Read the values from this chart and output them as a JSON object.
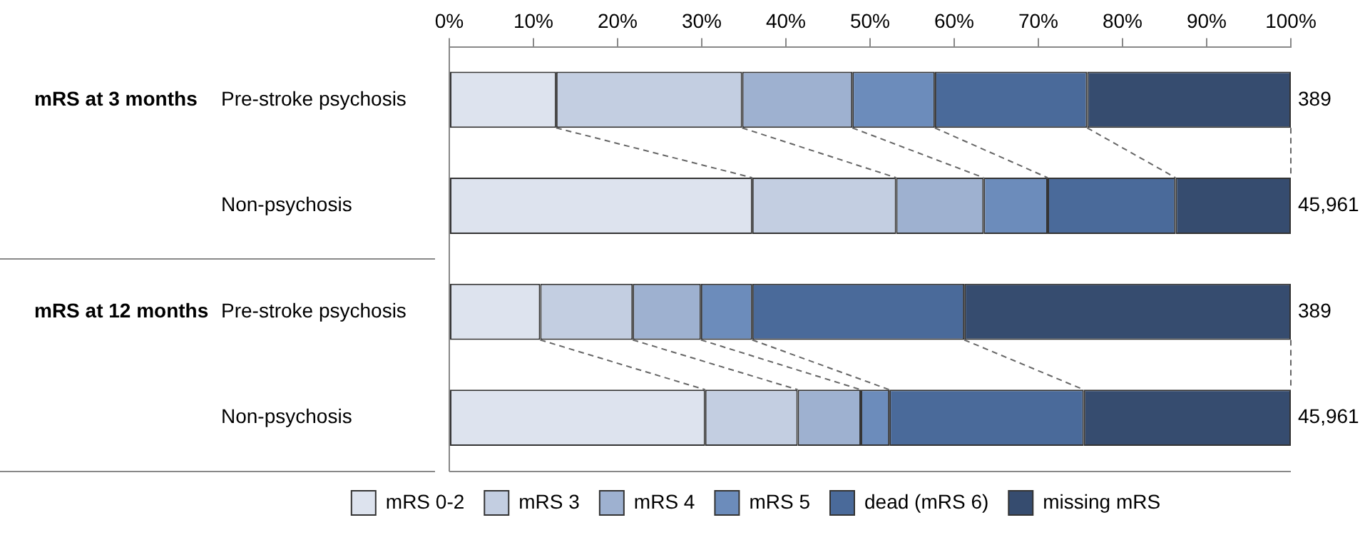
{
  "chart_data": {
    "type": "bar",
    "orientation": "horizontal",
    "stacked": true,
    "categories": [
      "Pre-stroke psychosis",
      "Non-psychosis",
      "Pre-stroke psychosis",
      "Non-psychosis"
    ],
    "series": [
      {
        "name": "mRS 0-2",
        "color": "#dde3ee",
        "values": [
          12.7,
          36.0,
          10.8,
          30.4
        ]
      },
      {
        "name": "mRS 3",
        "color": "#c3cee1",
        "values": [
          22.1,
          17.1,
          11.0,
          11.0
        ]
      },
      {
        "name": "mRS 4",
        "color": "#9eb1d0",
        "values": [
          13.1,
          10.4,
          8.1,
          7.5
        ]
      },
      {
        "name": "mRS 5",
        "color": "#6c8cbb",
        "values": [
          9.8,
          7.6,
          6.1,
          3.4
        ]
      },
      {
        "name": "dead (mRS 6)",
        "color": "#4a6a9a",
        "values": [
          18.1,
          15.2,
          25.2,
          23.1
        ]
      },
      {
        "name": "missing mRS",
        "color": "#364c6f",
        "values": [
          24.2,
          13.7,
          38.8,
          24.6
        ]
      }
    ],
    "annotations": [
      "mRS at 3 months",
      "mRS at 12 months",
      "389",
      "45,961",
      "389",
      "45,961"
    ],
    "xlim": [
      0,
      100
    ],
    "xticks": [
      {
        "value": 0,
        "label": "0%"
      },
      {
        "value": 10,
        "label": "10%"
      },
      {
        "value": 20,
        "label": "20%"
      },
      {
        "value": 30,
        "label": "30%"
      },
      {
        "value": 40,
        "label": "40%"
      },
      {
        "value": 50,
        "label": "50%"
      },
      {
        "value": 60,
        "label": "60%"
      },
      {
        "value": 70,
        "label": "70%"
      },
      {
        "value": 80,
        "label": "80%"
      },
      {
        "value": 90,
        "label": "90%"
      },
      {
        "value": 100,
        "label": "100%"
      }
    ],
    "grid": false,
    "legend": "bottom"
  }
}
